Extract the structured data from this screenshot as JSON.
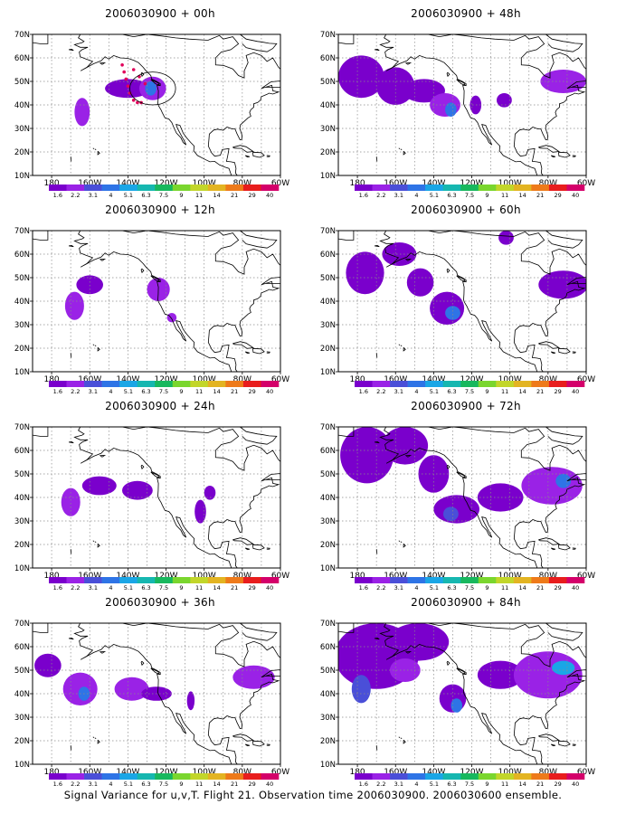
{
  "footer_caption": "Signal Variance for u,v,T. Flight 21. Observation time 2006030900. 2006030600 ensemble.",
  "colors": {
    "levels": [
      "#7a00cc",
      "#9a22e6",
      "#4a4fd8",
      "#2e74e6",
      "#1aa6e6",
      "#16b7b0",
      "#18b85e",
      "#7ad62e",
      "#c2d62a",
      "#e3b422",
      "#ee7a1a",
      "#e81d1d",
      "#d4006a"
    ],
    "coast": "#000000",
    "grid": "#8a8a8a",
    "obs_points": "#e0005a"
  },
  "chart_data": [
    {
      "type": "heatmap",
      "title": "2006030900 + 00h",
      "x_ticks": [
        "180",
        "160W",
        "140W",
        "120W",
        "100W",
        "80W",
        "60W"
      ],
      "y_ticks": [
        "10N",
        "20N",
        "30N",
        "40N",
        "50N",
        "60N",
        "70N"
      ],
      "xlim_lon": [
        -190,
        -60
      ],
      "ylim_lat": [
        10,
        70
      ],
      "colorbar_labels": [
        "1.6",
        "2.2",
        "3.1",
        "4",
        "5.1",
        "6.3",
        "7.5",
        "9",
        "11",
        "14",
        "21",
        "29",
        "40"
      ],
      "blobs": [
        {
          "lon": -164,
          "lat": 37,
          "rlon": 4,
          "rlat": 6,
          "level": 1
        },
        {
          "lon": -140,
          "lat": 47,
          "rlon": 12,
          "rlat": 4,
          "level": 0
        },
        {
          "lon": -127,
          "lat": 47,
          "rlon": 7,
          "rlat": 5,
          "level": 1
        },
        {
          "lon": -128,
          "lat": 47,
          "rlon": 3,
          "rlat": 3,
          "level": 3
        }
      ],
      "observations": [
        {
          "lon": -143,
          "lat": 57
        },
        {
          "lon": -142,
          "lat": 54
        },
        {
          "lon": -141,
          "lat": 51
        },
        {
          "lon": -140,
          "lat": 48
        },
        {
          "lon": -139,
          "lat": 45
        },
        {
          "lon": -137,
          "lat": 42
        },
        {
          "lon": -135,
          "lat": 41
        },
        {
          "lon": -133,
          "lat": 41
        },
        {
          "lon": -137,
          "lat": 55
        },
        {
          "lon": -134,
          "lat": 52
        },
        {
          "lon": -131,
          "lat": 49
        }
      ]
    },
    {
      "type": "heatmap",
      "title": "2006030900 + 48h",
      "x_ticks": [
        "180",
        "160W",
        "140W",
        "120W",
        "100W",
        "80W",
        "60W"
      ],
      "y_ticks": [
        "10N",
        "20N",
        "30N",
        "40N",
        "50N",
        "60N",
        "70N"
      ],
      "xlim_lon": [
        -190,
        -60
      ],
      "ylim_lat": [
        10,
        70
      ],
      "colorbar_labels": [
        "1.6",
        "2.2",
        "3.1",
        "4",
        "5.1",
        "6.3",
        "7.5",
        "9",
        "11",
        "14",
        "21",
        "29",
        "40"
      ],
      "blobs": [
        {
          "lon": -178,
          "lat": 52,
          "rlon": 12,
          "rlat": 9,
          "level": 0
        },
        {
          "lon": -160,
          "lat": 48,
          "rlon": 10,
          "rlat": 8,
          "level": 0
        },
        {
          "lon": -145,
          "lat": 46,
          "rlon": 11,
          "rlat": 5,
          "level": 0
        },
        {
          "lon": -134,
          "lat": 40,
          "rlon": 8,
          "rlat": 5,
          "level": 1
        },
        {
          "lon": -131,
          "lat": 38,
          "rlon": 3,
          "rlat": 3,
          "level": 3
        },
        {
          "lon": -118,
          "lat": 40,
          "rlon": 3,
          "rlat": 4,
          "level": 0
        },
        {
          "lon": -103,
          "lat": 42,
          "rlon": 4,
          "rlat": 3,
          "level": 0
        },
        {
          "lon": -72,
          "lat": 50,
          "rlon": 12,
          "rlat": 5,
          "level": 1
        }
      ],
      "observations": []
    },
    {
      "type": "heatmap",
      "title": "2006030900 + 12h",
      "x_ticks": [
        "180",
        "160W",
        "140W",
        "120W",
        "100W",
        "80W",
        "60W"
      ],
      "y_ticks": [
        "10N",
        "20N",
        "30N",
        "40N",
        "50N",
        "60N",
        "70N"
      ],
      "xlim_lon": [
        -190,
        -60
      ],
      "ylim_lat": [
        10,
        70
      ],
      "colorbar_labels": [
        "1.6",
        "2.2",
        "3.1",
        "4",
        "5.1",
        "6.3",
        "7.5",
        "9",
        "11",
        "14",
        "21",
        "29",
        "40"
      ],
      "blobs": [
        {
          "lon": -168,
          "lat": 38,
          "rlon": 5,
          "rlat": 6,
          "level": 1
        },
        {
          "lon": -160,
          "lat": 47,
          "rlon": 7,
          "rlat": 4,
          "level": 0
        },
        {
          "lon": -124,
          "lat": 45,
          "rlon": 6,
          "rlat": 5,
          "level": 1
        },
        {
          "lon": -117,
          "lat": 33,
          "rlon": 2.5,
          "rlat": 2,
          "level": 1
        }
      ],
      "observations": []
    },
    {
      "type": "heatmap",
      "title": "2006030900 + 60h",
      "x_ticks": [
        "180",
        "160W",
        "140W",
        "120W",
        "100W",
        "80W",
        "60W"
      ],
      "y_ticks": [
        "10N",
        "20N",
        "30N",
        "40N",
        "50N",
        "60N",
        "70N"
      ],
      "xlim_lon": [
        -190,
        -60
      ],
      "ylim_lat": [
        10,
        70
      ],
      "colorbar_labels": [
        "1.6",
        "2.2",
        "3.1",
        "4",
        "5.1",
        "6.3",
        "7.5",
        "9",
        "11",
        "14",
        "21",
        "29",
        "40"
      ],
      "blobs": [
        {
          "lon": -176,
          "lat": 52,
          "rlon": 10,
          "rlat": 9,
          "level": 0
        },
        {
          "lon": -158,
          "lat": 60,
          "rlon": 9,
          "rlat": 5,
          "level": 0
        },
        {
          "lon": -147,
          "lat": 48,
          "rlon": 7,
          "rlat": 6,
          "level": 0
        },
        {
          "lon": -133,
          "lat": 37,
          "rlon": 9,
          "rlat": 7,
          "level": 0
        },
        {
          "lon": -130,
          "lat": 35,
          "rlon": 4,
          "rlat": 3,
          "level": 3
        },
        {
          "lon": -102,
          "lat": 67,
          "rlon": 4,
          "rlat": 3,
          "level": 0
        },
        {
          "lon": -72,
          "lat": 47,
          "rlon": 13,
          "rlat": 6,
          "level": 0
        }
      ],
      "observations": []
    },
    {
      "type": "heatmap",
      "title": "2006030900 + 24h",
      "x_ticks": [
        "180",
        "160W",
        "140W",
        "120W",
        "100W",
        "80W",
        "60W"
      ],
      "y_ticks": [
        "10N",
        "20N",
        "30N",
        "40N",
        "50N",
        "60N",
        "70N"
      ],
      "xlim_lon": [
        -190,
        -60
      ],
      "ylim_lat": [
        10,
        70
      ],
      "colorbar_labels": [
        "1.6",
        "2.2",
        "3.1",
        "4",
        "5.1",
        "6.3",
        "7.5",
        "9",
        "11",
        "14",
        "21",
        "29",
        "40"
      ],
      "blobs": [
        {
          "lon": -170,
          "lat": 38,
          "rlon": 5,
          "rlat": 6,
          "level": 1
        },
        {
          "lon": -155,
          "lat": 45,
          "rlon": 9,
          "rlat": 4,
          "level": 0
        },
        {
          "lon": -135,
          "lat": 43,
          "rlon": 8,
          "rlat": 4,
          "level": 0
        },
        {
          "lon": -102,
          "lat": 34,
          "rlon": 3,
          "rlat": 5,
          "level": 0
        },
        {
          "lon": -97,
          "lat": 42,
          "rlon": 3,
          "rlat": 3,
          "level": 0
        }
      ],
      "observations": []
    },
    {
      "type": "heatmap",
      "title": "2006030900 + 72h",
      "x_ticks": [
        "180",
        "160W",
        "140W",
        "120W",
        "100W",
        "80W",
        "60W"
      ],
      "y_ticks": [
        "10N",
        "20N",
        "30N",
        "40N",
        "50N",
        "60N",
        "70N"
      ],
      "xlim_lon": [
        -190,
        -60
      ],
      "ylim_lat": [
        10,
        70
      ],
      "colorbar_labels": [
        "1.6",
        "2.2",
        "3.1",
        "4",
        "5.1",
        "6.3",
        "7.5",
        "9",
        "11",
        "14",
        "21",
        "29",
        "40"
      ],
      "blobs": [
        {
          "lon": -175,
          "lat": 58,
          "rlon": 14,
          "rlat": 12,
          "level": 0
        },
        {
          "lon": -155,
          "lat": 62,
          "rlon": 12,
          "rlat": 8,
          "level": 0
        },
        {
          "lon": -140,
          "lat": 50,
          "rlon": 8,
          "rlat": 8,
          "level": 0
        },
        {
          "lon": -128,
          "lat": 35,
          "rlon": 12,
          "rlat": 6,
          "level": 0
        },
        {
          "lon": -131,
          "lat": 33,
          "rlon": 4,
          "rlat": 3,
          "level": 2
        },
        {
          "lon": -105,
          "lat": 40,
          "rlon": 12,
          "rlat": 6,
          "level": 0
        },
        {
          "lon": -78,
          "lat": 45,
          "rlon": 16,
          "rlat": 8,
          "level": 1
        },
        {
          "lon": -72,
          "lat": 47,
          "rlon": 4,
          "rlat": 3,
          "level": 3
        }
      ],
      "observations": []
    },
    {
      "type": "heatmap",
      "title": "2006030900 + 36h",
      "x_ticks": [
        "180",
        "160W",
        "140W",
        "120W",
        "100W",
        "80W",
        "60W"
      ],
      "y_ticks": [
        "10N",
        "20N",
        "30N",
        "40N",
        "50N",
        "60N",
        "70N"
      ],
      "xlim_lon": [
        -190,
        -60
      ],
      "ylim_lat": [
        10,
        70
      ],
      "colorbar_labels": [
        "1.6",
        "2.2",
        "3.1",
        "4",
        "5.1",
        "6.3",
        "7.5",
        "9",
        "11",
        "14",
        "21",
        "29",
        "40"
      ],
      "blobs": [
        {
          "lon": -182,
          "lat": 52,
          "rlon": 7,
          "rlat": 5,
          "level": 0
        },
        {
          "lon": -165,
          "lat": 42,
          "rlon": 9,
          "rlat": 7,
          "level": 1
        },
        {
          "lon": -163,
          "lat": 40,
          "rlon": 3,
          "rlat": 3,
          "level": 3
        },
        {
          "lon": -138,
          "lat": 42,
          "rlon": 9,
          "rlat": 5,
          "level": 1
        },
        {
          "lon": -125,
          "lat": 40,
          "rlon": 8,
          "rlat": 3,
          "level": 0
        },
        {
          "lon": -107,
          "lat": 37,
          "rlon": 2,
          "rlat": 4,
          "level": 0
        },
        {
          "lon": -74,
          "lat": 47,
          "rlon": 11,
          "rlat": 5,
          "level": 1
        }
      ],
      "observations": []
    },
    {
      "type": "heatmap",
      "title": "2006030900 + 84h",
      "x_ticks": [
        "180",
        "160W",
        "140W",
        "120W",
        "100W",
        "80W",
        "60W"
      ],
      "y_ticks": [
        "10N",
        "20N",
        "30N",
        "40N",
        "50N",
        "60N",
        "70N"
      ],
      "xlim_lon": [
        -190,
        -60
      ],
      "ylim_lat": [
        10,
        70
      ],
      "colorbar_labels": [
        "1.6",
        "2.2",
        "3.1",
        "4",
        "5.1",
        "6.3",
        "7.5",
        "9",
        "11",
        "14",
        "21",
        "29",
        "40"
      ],
      "blobs": [
        {
          "lon": -170,
          "lat": 56,
          "rlon": 22,
          "rlat": 14,
          "level": 0
        },
        {
          "lon": -148,
          "lat": 62,
          "rlon": 16,
          "rlat": 8,
          "level": 0
        },
        {
          "lon": -178,
          "lat": 42,
          "rlon": 5,
          "rlat": 6,
          "level": 2
        },
        {
          "lon": -155,
          "lat": 50,
          "rlon": 8,
          "rlat": 5,
          "level": 1
        },
        {
          "lon": -130,
          "lat": 38,
          "rlon": 7,
          "rlat": 6,
          "level": 0
        },
        {
          "lon": -128,
          "lat": 35,
          "rlon": 3,
          "rlat": 3,
          "level": 3
        },
        {
          "lon": -105,
          "lat": 48,
          "rlon": 12,
          "rlat": 6,
          "level": 0
        },
        {
          "lon": -80,
          "lat": 48,
          "rlon": 18,
          "rlat": 10,
          "level": 1
        },
        {
          "lon": -72,
          "lat": 51,
          "rlon": 6,
          "rlat": 3,
          "level": 4
        }
      ],
      "observations": []
    }
  ]
}
